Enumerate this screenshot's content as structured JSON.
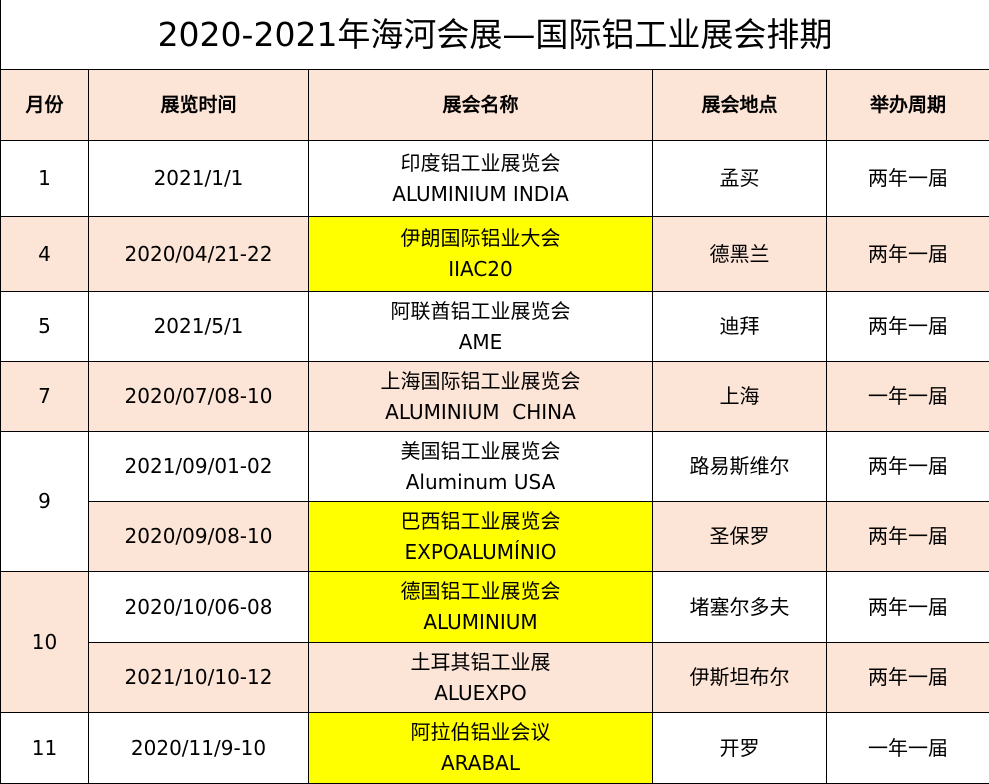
{
  "title": "2020-2021年海河会展—国际铝工业展会排期",
  "headers": [
    "月份",
    "展览时间",
    "展会名称",
    "展会地点",
    "举办周期"
  ],
  "colors": {
    "header_bg": "#fce4d6",
    "alt_row_bg": "#fce4d6",
    "highlight": "#ffff00"
  },
  "rows": [
    {
      "month": "1",
      "date": "2021/1/1",
      "name_cn": "印度铝工业展览会",
      "name_en": "ALUMINIUM INDIA",
      "location": "孟买",
      "cycle": "两年一届",
      "highlight": false
    },
    {
      "month": "4",
      "date": "2020/04/21-22",
      "name_cn": "伊朗国际铝业大会",
      "name_en": "IIAC20",
      "location": "德黑兰",
      "cycle": "两年一届",
      "highlight": true
    },
    {
      "month": "5",
      "date": "2021/5/1",
      "name_cn": "阿联酋铝工业展览会",
      "name_en": "AME",
      "location": "迪拜",
      "cycle": "两年一届",
      "highlight": false
    },
    {
      "month": "7",
      "date": "2020/07/08-10",
      "name_cn": "上海国际铝工业展览会",
      "name_en": "ALUMINIUM  CHINA",
      "location": "上海",
      "cycle": "一年一届",
      "highlight": false
    },
    {
      "month": "9",
      "date": "2021/09/01-02",
      "name_cn": "美国铝工业展览会",
      "name_en": "Aluminum USA",
      "location": "路易斯维尔",
      "cycle": "两年一届",
      "highlight": false
    },
    {
      "month": "9",
      "date": "2020/09/08-10",
      "name_cn": "巴西铝工业展览会",
      "name_en": "EXPOALUMÍNIO",
      "location": "圣保罗",
      "cycle": "两年一届",
      "highlight": true
    },
    {
      "month": "10",
      "date": "2020/10/06-08",
      "name_cn": "德国铝工业展览会",
      "name_en": "ALUMINIUM",
      "location": "堵塞尔多夫",
      "cycle": "两年一届",
      "highlight": true
    },
    {
      "month": "10",
      "date": "2021/10/10-12",
      "name_cn": "土耳其铝工业展",
      "name_en": "ALUEXPO",
      "location": "伊斯坦布尔",
      "cycle": "两年一届",
      "highlight": false
    },
    {
      "month": "11",
      "date": "2020/11/9-10",
      "name_cn": "阿拉伯铝业会议",
      "name_en": "ARABAL",
      "location": "开罗",
      "cycle": "一年一届",
      "highlight": true
    }
  ]
}
